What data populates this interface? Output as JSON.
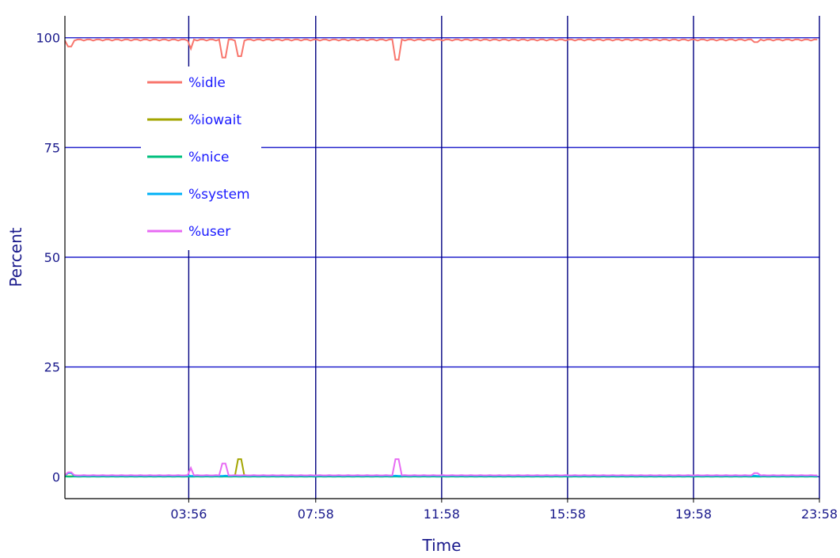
{
  "chart_data": {
    "type": "line",
    "title": "",
    "xlabel": "Time",
    "ylabel": "Percent",
    "ylim": [
      -5,
      105
    ],
    "xlim": [
      "00:00",
      "23:58"
    ],
    "x_ticks": [
      "03:56",
      "07:58",
      "11:58",
      "15:58",
      "19:58",
      "23:58"
    ],
    "y_ticks": [
      0,
      25,
      50,
      75,
      100
    ],
    "grid": true,
    "legend": {
      "placement": "upper-left"
    },
    "series": [
      {
        "name": "%idle",
        "color": "#f8766d",
        "baseline": 99.6,
        "spikes": [
          {
            "t": "00:10",
            "v": 98.0
          },
          {
            "t": "04:00",
            "v": 97.5
          },
          {
            "t": "05:04",
            "v": 95.5
          },
          {
            "t": "05:32",
            "v": 95.8
          },
          {
            "t": "10:34",
            "v": 95.0
          },
          {
            "t": "21:56",
            "v": 99.0
          }
        ]
      },
      {
        "name": "%iowait",
        "color": "#a3a500",
        "baseline": 0.1,
        "spikes": [
          {
            "t": "05:32",
            "v": 4.0
          }
        ]
      },
      {
        "name": "%nice",
        "color": "#00bf7d",
        "baseline": 0.0,
        "spikes": []
      },
      {
        "name": "%system",
        "color": "#00b0f6",
        "baseline": 0.2,
        "spikes": [
          {
            "t": "00:10",
            "v": 0.8
          }
        ]
      },
      {
        "name": "%user",
        "color": "#e76bf3",
        "baseline": 0.3,
        "spikes": [
          {
            "t": "00:10",
            "v": 1.0
          },
          {
            "t": "04:00",
            "v": 2.0
          },
          {
            "t": "05:04",
            "v": 3.0
          },
          {
            "t": "10:34",
            "v": 4.0
          },
          {
            "t": "21:56",
            "v": 0.8
          }
        ]
      }
    ]
  },
  "colors": {
    "grid": "#2222cc",
    "axis": "#000000",
    "text": "#1a1a8c",
    "legend_text": "#1a1aff"
  }
}
